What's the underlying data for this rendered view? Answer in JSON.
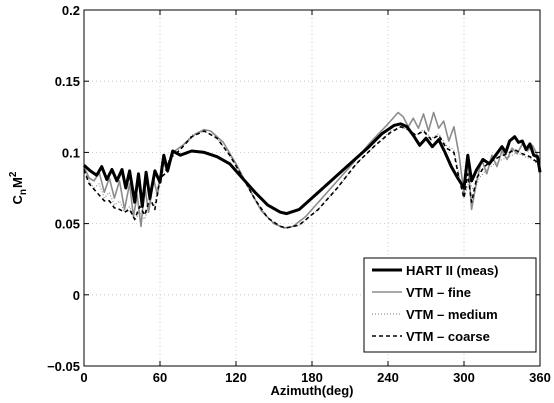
{
  "chart_data": {
    "type": "line",
    "xlabel": "Azimuth(deg)",
    "ylabel_main": "C",
    "ylabel_sub": "n",
    "ylabel_main2": "M",
    "ylabel_sup": "2",
    "xlim": [
      0,
      360
    ],
    "ylim": [
      -0.05,
      0.2
    ],
    "xticks": [
      0,
      60,
      120,
      180,
      240,
      300,
      360
    ],
    "yticks": [
      -0.05,
      0,
      0.05,
      0.1,
      0.15,
      0.2
    ],
    "ytick_labels": [
      "−0.05",
      "0",
      "0.05",
      "0.1",
      "0.15",
      "0.2"
    ],
    "grid": true,
    "legend_position": "bottom-right",
    "series": [
      {
        "name": "HART II (meas)",
        "color": "#000000",
        "style": "solid-thick",
        "x": [
          0,
          5,
          10,
          14,
          18,
          22,
          26,
          30,
          33,
          36,
          40,
          43,
          46,
          49,
          52,
          56,
          60,
          63,
          66,
          70,
          76,
          85,
          95,
          105,
          115,
          125,
          135,
          145,
          155,
          160,
          170,
          180,
          195,
          210,
          225,
          235,
          245,
          250,
          255,
          260,
          265,
          270,
          275,
          280,
          285,
          290,
          295,
          300,
          303,
          306,
          310,
          315,
          320,
          325,
          330,
          333,
          336,
          340,
          343,
          346,
          349,
          352,
          355,
          358,
          360
        ],
        "y": [
          0.091,
          0.087,
          0.084,
          0.09,
          0.081,
          0.088,
          0.08,
          0.088,
          0.075,
          0.087,
          0.065,
          0.085,
          0.062,
          0.086,
          0.068,
          0.087,
          0.079,
          0.098,
          0.087,
          0.101,
          0.098,
          0.101,
          0.1,
          0.097,
          0.092,
          0.082,
          0.072,
          0.063,
          0.058,
          0.057,
          0.06,
          0.068,
          0.08,
          0.092,
          0.104,
          0.113,
          0.119,
          0.12,
          0.118,
          0.112,
          0.105,
          0.11,
          0.104,
          0.109,
          0.1,
          0.09,
          0.082,
          0.075,
          0.098,
          0.08,
          0.088,
          0.095,
          0.092,
          0.098,
          0.104,
          0.1,
          0.108,
          0.111,
          0.107,
          0.108,
          0.102,
          0.106,
          0.098,
          0.097,
          0.086
        ]
      },
      {
        "name": "VTM – fine",
        "color": "#8c8c8c",
        "style": "solid",
        "x": [
          0,
          4,
          8,
          12,
          16,
          20,
          24,
          28,
          32,
          36,
          39,
          42,
          45,
          48,
          51,
          55,
          58,
          62,
          66,
          70,
          78,
          88,
          95,
          100,
          110,
          120,
          130,
          140,
          150,
          158,
          165,
          175,
          190,
          210,
          225,
          240,
          248,
          252,
          256,
          260,
          264,
          268,
          272,
          276,
          280,
          284,
          288,
          292,
          296,
          300,
          303,
          306,
          310,
          314,
          318,
          322,
          326,
          330,
          334,
          338,
          342,
          346,
          350,
          354,
          358,
          360
        ],
        "y": [
          0.09,
          0.082,
          0.08,
          0.086,
          0.072,
          0.082,
          0.068,
          0.08,
          0.06,
          0.078,
          0.055,
          0.07,
          0.048,
          0.076,
          0.058,
          0.081,
          0.07,
          0.095,
          0.086,
          0.1,
          0.105,
          0.113,
          0.116,
          0.115,
          0.107,
          0.092,
          0.075,
          0.059,
          0.05,
          0.047,
          0.048,
          0.055,
          0.07,
          0.09,
          0.106,
          0.12,
          0.128,
          0.125,
          0.118,
          0.124,
          0.117,
          0.127,
          0.115,
          0.128,
          0.117,
          0.122,
          0.108,
          0.118,
          0.099,
          0.071,
          0.095,
          0.06,
          0.08,
          0.095,
          0.085,
          0.098,
          0.09,
          0.101,
          0.095,
          0.103,
          0.099,
          0.106,
          0.101,
          0.105,
          0.098,
          0.093
        ]
      },
      {
        "name": "VTM – medium",
        "color": "#7a7a7a",
        "style": "dotted",
        "x": [
          0,
          4,
          8,
          12,
          16,
          20,
          24,
          28,
          32,
          36,
          40,
          44,
          48,
          52,
          56,
          60,
          64,
          68,
          75,
          85,
          95,
          105,
          115,
          125,
          135,
          145,
          155,
          160,
          170,
          185,
          200,
          215,
          230,
          242,
          250,
          256,
          262,
          268,
          274,
          280,
          286,
          292,
          296,
          300,
          304,
          308,
          312,
          318,
          324,
          330,
          336,
          342,
          348,
          354,
          360
        ],
        "y": [
          0.088,
          0.08,
          0.075,
          0.078,
          0.068,
          0.072,
          0.063,
          0.066,
          0.058,
          0.062,
          0.052,
          0.058,
          0.053,
          0.066,
          0.063,
          0.085,
          0.088,
          0.097,
          0.102,
          0.112,
          0.115,
          0.11,
          0.098,
          0.083,
          0.067,
          0.054,
          0.048,
          0.047,
          0.049,
          0.06,
          0.075,
          0.092,
          0.105,
          0.115,
          0.118,
          0.116,
          0.112,
          0.116,
          0.11,
          0.113,
          0.105,
          0.102,
          0.085,
          0.068,
          0.08,
          0.072,
          0.082,
          0.088,
          0.092,
          0.095,
          0.097,
          0.1,
          0.097,
          0.095,
          0.09
        ]
      },
      {
        "name": "VTM – coarse",
        "color": "#000000",
        "style": "dashed",
        "x": [
          0,
          4,
          8,
          12,
          16,
          20,
          24,
          28,
          32,
          36,
          40,
          44,
          48,
          52,
          56,
          60,
          64,
          68,
          75,
          85,
          95,
          105,
          115,
          125,
          135,
          145,
          155,
          160,
          170,
          185,
          200,
          215,
          230,
          242,
          250,
          256,
          262,
          268,
          274,
          280,
          286,
          292,
          296,
          300,
          303,
          306,
          310,
          316,
          322,
          328,
          334,
          340,
          346,
          352,
          358,
          360
        ],
        "y": [
          0.088,
          0.078,
          0.074,
          0.07,
          0.066,
          0.066,
          0.061,
          0.06,
          0.058,
          0.06,
          0.053,
          0.062,
          0.056,
          0.068,
          0.06,
          0.082,
          0.085,
          0.096,
          0.101,
          0.111,
          0.115,
          0.11,
          0.098,
          0.083,
          0.067,
          0.054,
          0.048,
          0.047,
          0.049,
          0.06,
          0.075,
          0.092,
          0.105,
          0.114,
          0.118,
          0.116,
          0.112,
          0.115,
          0.109,
          0.112,
          0.103,
          0.1,
          0.082,
          0.068,
          0.085,
          0.065,
          0.082,
          0.09,
          0.094,
          0.097,
          0.099,
          0.102,
          0.099,
          0.097,
          0.093,
          0.09
        ]
      }
    ]
  }
}
